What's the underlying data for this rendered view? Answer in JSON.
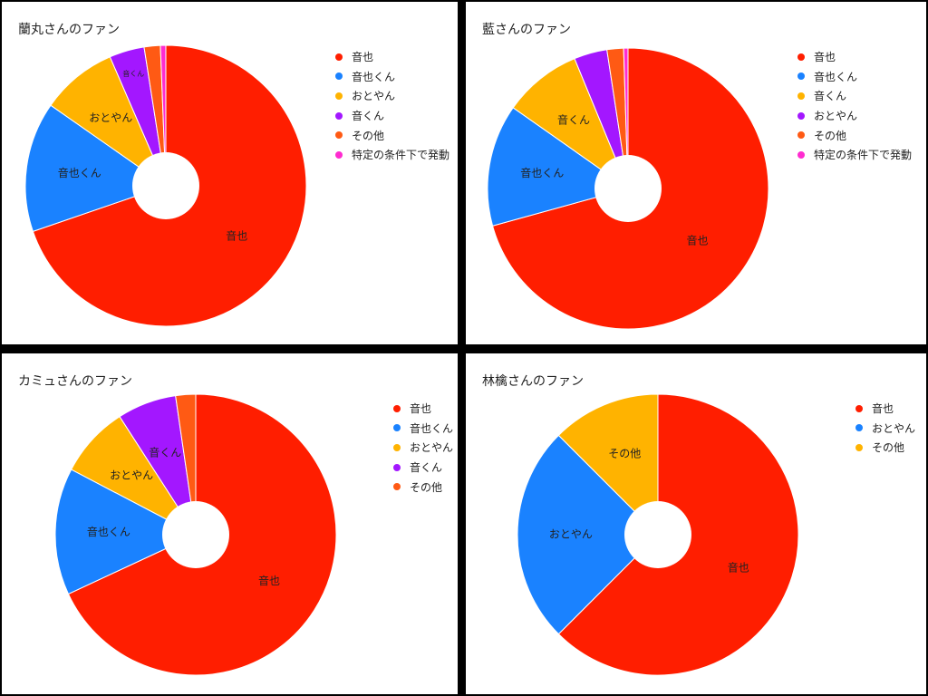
{
  "chart_data": [
    {
      "type": "pie",
      "title": "蘭丸さんのファン",
      "labels": [
        "音也",
        "音也くん",
        "おとやん",
        "音くん",
        "その他",
        "特定の条件下で発動"
      ],
      "values": [
        67.5,
        14.5,
        8.5,
        3.9,
        1.8,
        0.6
      ],
      "colors": [
        "#ff1e00",
        "#1a82ff",
        "#ffb300",
        "#a317ff",
        "#ff5a14",
        "#ff2cd0"
      ],
      "slice_labels": [
        "音也",
        "音也くん",
        "おとやん",
        "音くん",
        "",
        ""
      ],
      "donut_hole": true,
      "legend_position": "right"
    },
    {
      "type": "pie",
      "title": "藍さんのファン",
      "labels": [
        "音也",
        "音也くん",
        "音くん",
        "おとやん",
        "その他",
        "特定の条件下で発動"
      ],
      "values": [
        70.5,
        14.0,
        9.0,
        3.8,
        1.9,
        0.5
      ],
      "colors": [
        "#ff1e00",
        "#1a82ff",
        "#ffb300",
        "#a317ff",
        "#ff5a14",
        "#ff2cd0"
      ],
      "slice_labels": [
        "音也",
        "音也くん",
        "音くん",
        "",
        "",
        ""
      ],
      "donut_hole": true,
      "legend_position": "right"
    },
    {
      "type": "pie",
      "title": "カミュさんのファン",
      "labels": [
        "音也",
        "音也くん",
        "おとやん",
        "音くん",
        "その他"
      ],
      "values": [
        68.0,
        14.6,
        8.2,
        6.8,
        2.3
      ],
      "colors": [
        "#ff1e00",
        "#1a82ff",
        "#ffb300",
        "#a317ff",
        "#ff5a14"
      ],
      "slice_labels": [
        "音也",
        "音也くん",
        "おとやん",
        "音くん",
        ""
      ],
      "donut_hole": true,
      "legend_position": "right"
    },
    {
      "type": "pie",
      "title": "林檎さんのファン",
      "labels": [
        "音也",
        "おとやん",
        "その他"
      ],
      "values": [
        62.5,
        25.0,
        12.5
      ],
      "colors": [
        "#ff1e00",
        "#1a82ff",
        "#ffb300"
      ],
      "slice_labels": [
        "音也",
        "おとやん",
        "その他"
      ],
      "donut_hole": true,
      "legend_position": "right"
    }
  ]
}
